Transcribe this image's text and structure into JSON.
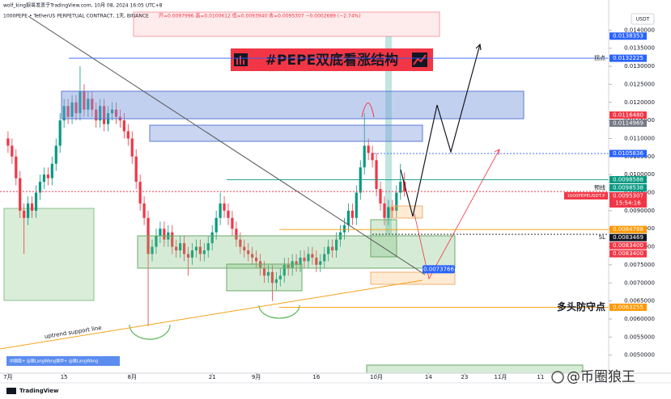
{
  "header": {
    "publisher": "wolf_king狼哥发表于TradingView.com, 10月 08, 2024 16:05 UTC+8",
    "symbol": "1000PEPE • TetherUS PERPETUAL CONTRACT, 1天, BINANCE",
    "ohlc": "开=0.0097996 高=0.0100612 低=0.0093940 收=0.0095307 −0.0002689 (−2.74%)"
  },
  "chart_data": {
    "type": "candlestick",
    "title": "#PEPE双底看涨结构",
    "currency": "USDT",
    "up_color": "#089981",
    "down_color": "#f23645",
    "x": [
      0,
      1,
      2,
      3,
      4,
      5,
      6,
      7,
      8,
      9,
      10,
      11,
      12,
      13,
      14,
      15,
      16,
      17,
      18,
      19,
      20,
      21,
      22,
      23,
      24,
      25,
      26,
      27,
      28,
      29,
      30,
      31,
      32,
      33,
      34,
      35,
      36,
      37,
      38,
      39,
      40,
      41,
      42,
      43,
      44,
      45,
      46,
      47,
      48,
      49,
      50,
      51,
      52,
      53,
      54,
      55,
      56,
      57,
      58,
      59,
      60,
      61,
      62,
      63,
      64,
      65,
      66,
      67,
      68,
      69,
      70,
      71,
      72,
      73,
      74,
      75,
      76,
      77,
      78,
      79,
      80,
      81,
      82,
      83,
      84,
      85,
      86,
      87,
      88,
      89,
      90,
      91,
      92,
      93,
      94,
      95,
      96,
      97,
      98,
      99
    ],
    "values": [
      [
        0.011,
        0.0112,
        0.0106,
        0.0108
      ],
      [
        0.0108,
        0.011,
        0.0103,
        0.0105
      ],
      [
        0.0105,
        0.0107,
        0.0097,
        0.0099
      ],
      [
        0.0099,
        0.0101,
        0.0088,
        0.009
      ],
      [
        0.009,
        0.0092,
        0.0078,
        0.0088
      ],
      [
        0.0088,
        0.0094,
        0.0086,
        0.0092
      ],
      [
        0.0092,
        0.0094,
        0.0088,
        0.009
      ],
      [
        0.009,
        0.0097,
        0.0088,
        0.0095
      ],
      [
        0.0095,
        0.01,
        0.0093,
        0.0098
      ],
      [
        0.0098,
        0.0102,
        0.0096,
        0.01
      ],
      [
        0.01,
        0.0102,
        0.0097,
        0.0099
      ],
      [
        0.0099,
        0.0105,
        0.0097,
        0.0103
      ],
      [
        0.0103,
        0.011,
        0.0101,
        0.0108
      ],
      [
        0.0108,
        0.0117,
        0.0106,
        0.0115
      ],
      [
        0.0115,
        0.0121,
        0.0113,
        0.0119
      ],
      [
        0.0119,
        0.0121,
        0.0114,
        0.0116
      ],
      [
        0.0116,
        0.0122,
        0.0114,
        0.012
      ],
      [
        0.012,
        0.0122,
        0.0115,
        0.0117
      ],
      [
        0.0117,
        0.013,
        0.0115,
        0.0123
      ],
      [
        0.0123,
        0.0125,
        0.0116,
        0.0118
      ],
      [
        0.0118,
        0.0123,
        0.0116,
        0.0121
      ],
      [
        0.0121,
        0.0123,
        0.0116,
        0.0118
      ],
      [
        0.0118,
        0.012,
        0.0113,
        0.0115
      ],
      [
        0.0115,
        0.0121,
        0.0113,
        0.0119
      ],
      [
        0.0119,
        0.0121,
        0.0112,
        0.0114
      ],
      [
        0.0114,
        0.0119,
        0.0112,
        0.0117
      ],
      [
        0.0117,
        0.012,
        0.0115,
        0.0118
      ],
      [
        0.0118,
        0.012,
        0.0114,
        0.0116
      ],
      [
        0.0116,
        0.0118,
        0.0113,
        0.0115
      ],
      [
        0.0115,
        0.0117,
        0.011,
        0.0112
      ],
      [
        0.0112,
        0.0114,
        0.0108,
        0.011
      ],
      [
        0.011,
        0.0112,
        0.0103,
        0.0105
      ],
      [
        0.0105,
        0.0107,
        0.0096,
        0.0098
      ],
      [
        0.0098,
        0.01,
        0.009,
        0.0092
      ],
      [
        0.0092,
        0.0094,
        0.0086,
        0.0088
      ],
      [
        0.0088,
        0.009,
        0.0058,
        0.0078
      ],
      [
        0.0078,
        0.0082,
        0.0076,
        0.008
      ],
      [
        0.008,
        0.0085,
        0.0078,
        0.0083
      ],
      [
        0.0083,
        0.0087,
        0.0081,
        0.0085
      ],
      [
        0.0085,
        0.0087,
        0.008,
        0.0082
      ],
      [
        0.0082,
        0.0086,
        0.008,
        0.0084
      ],
      [
        0.0084,
        0.0086,
        0.0078,
        0.008
      ],
      [
        0.008,
        0.0082,
        0.0077,
        0.0079
      ],
      [
        0.0079,
        0.0083,
        0.0077,
        0.0081
      ],
      [
        0.0081,
        0.0083,
        0.0076,
        0.0078
      ],
      [
        0.0078,
        0.008,
        0.0072,
        0.0077
      ],
      [
        0.0077,
        0.0081,
        0.0075,
        0.0079
      ],
      [
        0.0079,
        0.0082,
        0.0077,
        0.008
      ],
      [
        0.008,
        0.0082,
        0.0076,
        0.0078
      ],
      [
        0.0078,
        0.0081,
        0.0076,
        0.0079
      ],
      [
        0.0079,
        0.0083,
        0.0077,
        0.0081
      ],
      [
        0.0081,
        0.0086,
        0.0079,
        0.0084
      ],
      [
        0.0084,
        0.009,
        0.0082,
        0.0088
      ],
      [
        0.0088,
        0.0095,
        0.0086,
        0.0092
      ],
      [
        0.0092,
        0.0094,
        0.0088,
        0.009
      ],
      [
        0.009,
        0.0092,
        0.0086,
        0.0088
      ],
      [
        0.0088,
        0.009,
        0.0083,
        0.0085
      ],
      [
        0.0085,
        0.0087,
        0.008,
        0.0082
      ],
      [
        0.0082,
        0.0084,
        0.0078,
        0.008
      ],
      [
        0.008,
        0.0082,
        0.0077,
        0.0079
      ],
      [
        0.0079,
        0.0081,
        0.0076,
        0.0078
      ],
      [
        0.0078,
        0.008,
        0.0075,
        0.0077
      ],
      [
        0.0077,
        0.0079,
        0.0074,
        0.0076
      ],
      [
        0.0076,
        0.0078,
        0.0072,
        0.0074
      ],
      [
        0.0074,
        0.0076,
        0.007,
        0.0072
      ],
      [
        0.0072,
        0.0075,
        0.007,
        0.0073
      ],
      [
        0.0073,
        0.0075,
        0.0065,
        0.007
      ],
      [
        0.007,
        0.0073,
        0.0068,
        0.0071
      ],
      [
        0.0071,
        0.0074,
        0.0069,
        0.0072
      ],
      [
        0.0072,
        0.0077,
        0.007,
        0.0075
      ],
      [
        0.0075,
        0.0077,
        0.0072,
        0.0074
      ],
      [
        0.0074,
        0.0078,
        0.0072,
        0.0076
      ],
      [
        0.0076,
        0.0078,
        0.0073,
        0.0075
      ],
      [
        0.0075,
        0.0079,
        0.0073,
        0.0077
      ],
      [
        0.0077,
        0.0079,
        0.0074,
        0.0076
      ],
      [
        0.0076,
        0.008,
        0.0074,
        0.0078
      ],
      [
        0.0078,
        0.008,
        0.0075,
        0.0077
      ],
      [
        0.0077,
        0.0079,
        0.0073,
        0.0075
      ],
      [
        0.0075,
        0.0078,
        0.0073,
        0.0076
      ],
      [
        0.0076,
        0.008,
        0.0074,
        0.0078
      ],
      [
        0.0078,
        0.0082,
        0.0076,
        0.008
      ],
      [
        0.008,
        0.0082,
        0.0077,
        0.0079
      ],
      [
        0.0079,
        0.0084,
        0.0077,
        0.0082
      ],
      [
        0.0082,
        0.0086,
        0.008,
        0.0084
      ],
      [
        0.0084,
        0.0088,
        0.0082,
        0.0086
      ],
      [
        0.0086,
        0.0092,
        0.0084,
        0.009
      ],
      [
        0.009,
        0.0092,
        0.0086,
        0.0088
      ],
      [
        0.0088,
        0.0097,
        0.0086,
        0.0095
      ],
      [
        0.0095,
        0.0104,
        0.0093,
        0.0102
      ],
      [
        0.0102,
        0.0117,
        0.01,
        0.0108
      ],
      [
        0.0108,
        0.011,
        0.0104,
        0.0106
      ],
      [
        0.0106,
        0.0108,
        0.0102,
        0.0104
      ],
      [
        0.0104,
        0.0106,
        0.0094,
        0.0096
      ],
      [
        0.0096,
        0.0098,
        0.009,
        0.0092
      ],
      [
        0.0092,
        0.0094,
        0.0086,
        0.0088
      ],
      [
        0.0088,
        0.0093,
        0.0086,
        0.0091
      ],
      [
        0.0091,
        0.0093,
        0.0088,
        0.009
      ],
      [
        0.009,
        0.0097,
        0.0088,
        0.0095
      ],
      [
        0.0095,
        0.0103,
        0.0093,
        0.0098
      ],
      [
        0.0097996,
        0.0100612,
        0.009394,
        0.0095307
      ]
    ],
    "xlim": [
      -2,
      150
    ],
    "ylim": [
      0.0045,
      0.0145
    ],
    "xticks": [
      {
        "value": 0,
        "label": "7月"
      },
      {
        "value": 14,
        "label": "15"
      },
      {
        "value": 31,
        "label": "8月"
      },
      {
        "value": 51,
        "label": "21"
      },
      {
        "value": 62,
        "label": "9月"
      },
      {
        "value": 77,
        "label": "16"
      },
      {
        "value": 92,
        "label": "10月"
      },
      {
        "value": 105,
        "label": "14"
      },
      {
        "value": 114,
        "label": "23"
      },
      {
        "value": 123,
        "label": "11月"
      },
      {
        "value": 133,
        "label": "11"
      }
    ],
    "yticks": [
      {
        "value": 0.005,
        "label": "0.0050000"
      },
      {
        "value": 0.0055,
        "label": "0.0055000"
      },
      {
        "value": 0.006,
        "label": "0.0060000"
      },
      {
        "value": 0.0065,
        "label": "0.0065000"
      },
      {
        "value": 0.007,
        "label": "0.0070000"
      },
      {
        "value": 0.0075,
        "label": "0.0075000"
      },
      {
        "value": 0.008,
        "label": "0.0080000"
      },
      {
        "value": 0.0085,
        "label": "0.0085000"
      },
      {
        "value": 0.009,
        "label": "0.0090000"
      },
      {
        "value": 0.0095,
        "label": "0.0095000"
      },
      {
        "value": 0.01,
        "label": "0.0100000"
      },
      {
        "value": 0.0105,
        "label": "0.0105000"
      },
      {
        "value": 0.011,
        "label": "0.0110000"
      },
      {
        "value": 0.0115,
        "label": "0.0115000"
      },
      {
        "value": 0.012,
        "label": "0.0120000"
      },
      {
        "value": 0.0125,
        "label": "0.0125000"
      },
      {
        "value": 0.013,
        "label": "0.0130000"
      },
      {
        "value": 0.0135,
        "label": "0.0135000"
      },
      {
        "value": 0.014,
        "label": "0.0140000"
      }
    ],
    "price_tags": [
      {
        "value": 0.0138353,
        "color": "#2962ff"
      },
      {
        "value": 0.0132225,
        "color": "#2962ff",
        "note": "拐点"
      },
      {
        "value": 0.011648,
        "label": "0.0116480",
        "color": "#f23645"
      },
      {
        "value": 0.0114969,
        "color": "#787b86"
      },
      {
        "value": 0.0105836,
        "color": "#2962ff"
      },
      {
        "value": 0.0098588,
        "color": "#089981"
      },
      {
        "value": 0.0098538,
        "color": "#089981",
        "note": "预线"
      },
      {
        "value": 0.0095307,
        "color": "#f23645",
        "note": "1000PEPEUSDT.P",
        "countdown": "15:54:16"
      },
      {
        "value": 0.0084788,
        "color": "#ff9800"
      },
      {
        "value": 0.0083469,
        "color": "#131722",
        "note": "SL"
      },
      {
        "value": 0.00834,
        "label": "0.0083400",
        "color": "#f23645"
      },
      {
        "value": 0.00834,
        "label": "0.0083400",
        "color": "#f23645"
      },
      {
        "value": 0.0063255,
        "color": "#ff9800",
        "note": "多头防守点"
      }
    ],
    "target_label": {
      "value": 0.0073766,
      "color": "#2962ff"
    },
    "annotation": "uptrend support line",
    "note_box": "中国版+ @狼LangWang狼甲+ @狼LangWang",
    "watermark": "@币圈狼王",
    "branding": "TradingView"
  }
}
